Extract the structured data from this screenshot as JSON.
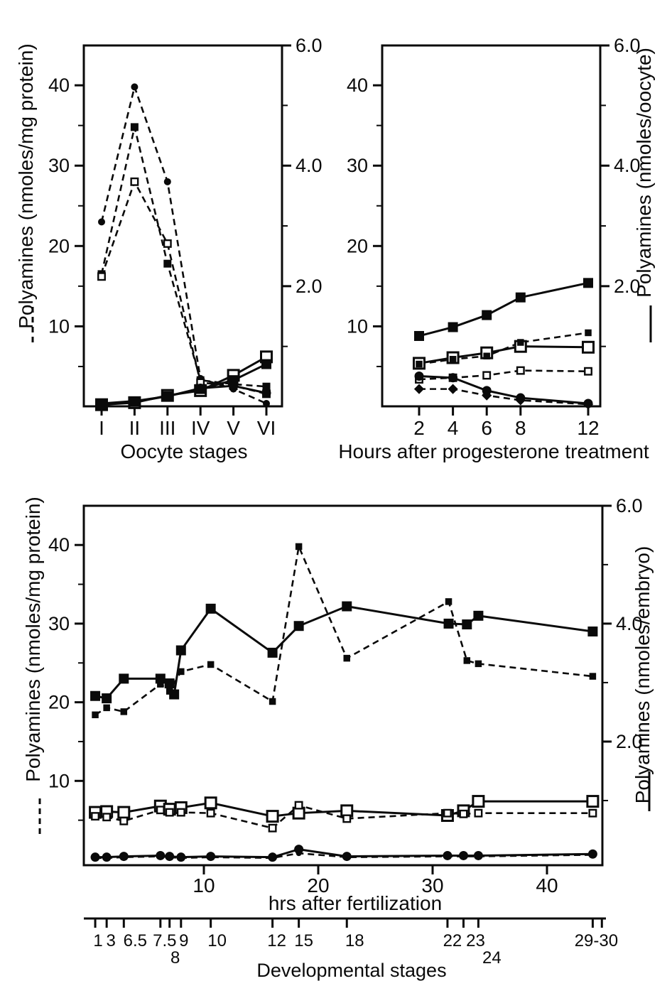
{
  "figure": {
    "background": "#ffffff",
    "ink": "#0a0a0a",
    "legend_note": {
      "dashed_line_reads": "left axis (nmoles/mg protein)",
      "solid_line_reads": "right axis (nmoles per oocyte/embryo)"
    }
  },
  "chart_data": [
    {
      "id": "oocyte-stages-panel",
      "type": "line",
      "x_axis": {
        "label": "Oocyte stages",
        "categories": [
          "I",
          "II",
          "III",
          "IV",
          "V",
          "VI"
        ]
      },
      "y_left": {
        "label": "Polyamines (nmoles/mg protein)",
        "line_style": "dashed",
        "range": [
          0,
          45
        ],
        "ticks": [
          10,
          20,
          30,
          40
        ],
        "minor_ticks": [
          5,
          15,
          25,
          35
        ]
      },
      "y_right": {
        "label": "",
        "line_style": "solid",
        "range": [
          0,
          6
        ],
        "ticks": [
          "2.0",
          "4.0",
          "6.0"
        ],
        "tick_values_left_units": [
          15,
          30,
          45
        ],
        "minor_tick_values_left_units": [
          7.5,
          22.5,
          37.5
        ]
      },
      "series": [
        {
          "name": "dashed-filled-circle",
          "marker": "circle-filled-medium",
          "line": "dashed",
          "axis": "left",
          "values": [
            23,
            39.8,
            28,
            3.5,
            2.2,
            0.4
          ]
        },
        {
          "name": "dashed-filled-square",
          "marker": "square-filled-medium",
          "line": "dashed",
          "axis": "left",
          "values": [
            16.5,
            34.8,
            17.8,
            3.3,
            2.8,
            2.5
          ]
        },
        {
          "name": "dashed-open-square",
          "marker": "square-open-small",
          "line": "dashed",
          "axis": "left",
          "values": [
            16.2,
            28,
            20.3,
            3.0,
            2.6,
            1.6
          ]
        },
        {
          "name": "solid-open-square",
          "marker": "square-open-large",
          "line": "solid",
          "axis": "right",
          "values": [
            0.25,
            0.5,
            1.4,
            2.0,
            3.9,
            6.2
          ]
        },
        {
          "name": "solid-filled-square",
          "marker": "square-filled-large",
          "line": "solid",
          "axis": "right",
          "values": [
            0.3,
            0.6,
            1.3,
            2.2,
            3.3,
            5.3
          ]
        },
        {
          "name": "solid-filled-circle",
          "marker": "circle-filled-large",
          "line": "solid",
          "axis": "right",
          "values": [
            0.4,
            0.7,
            1.3,
            2.3,
            2.6,
            1.7
          ]
        }
      ]
    },
    {
      "id": "progesterone-panel",
      "type": "line",
      "x_axis": {
        "label": "Hours after progesterone treatment",
        "values": [
          2,
          4,
          6,
          8,
          12
        ],
        "tick_labels": [
          "2",
          "4",
          "6",
          "8",
          "12"
        ]
      },
      "y_left": {
        "label": "",
        "line_style": "dashed",
        "range": [
          0,
          45
        ],
        "ticks": [
          10,
          20,
          30,
          40
        ],
        "minor_ticks": [
          5,
          15,
          25,
          35
        ]
      },
      "y_right": {
        "label": "Polyamines (nmoles/oocyte)",
        "line_style": "solid",
        "range": [
          0,
          6
        ],
        "ticks": [
          "2.0",
          "4.0",
          "6.0"
        ],
        "tick_values_left_units": [
          15,
          30,
          45
        ],
        "minor_tick_values_left_units": [
          7.5,
          22.5,
          37.5
        ]
      },
      "series": [
        {
          "name": "solid-filled-square",
          "marker": "square-filled-large",
          "line": "solid",
          "axis": "right",
          "values": [
            8.8,
            9.9,
            11.4,
            13.6,
            15.4
          ]
        },
        {
          "name": "solid-open-square",
          "marker": "square-open-large",
          "line": "solid",
          "axis": "right",
          "values": [
            5.4,
            6.1,
            6.7,
            7.5,
            7.4
          ]
        },
        {
          "name": "dashed-filled-square",
          "marker": "square-filled-small",
          "line": "dashed",
          "axis": "left",
          "values": [
            5.3,
            5.9,
            6.3,
            8.0,
            9.2
          ]
        },
        {
          "name": "dashed-open-square",
          "marker": "square-open-small",
          "line": "dashed",
          "axis": "left",
          "values": [
            3.4,
            3.6,
            3.9,
            4.5,
            4.4
          ]
        },
        {
          "name": "solid-filled-circle",
          "marker": "circle-filled-large",
          "line": "solid",
          "axis": "right",
          "values": [
            3.8,
            3.6,
            2.0,
            1.1,
            0.4
          ]
        },
        {
          "name": "dashed-filled-diamond",
          "marker": "diamond-filled-small",
          "line": "dashed",
          "axis": "left",
          "values": [
            2.2,
            2.2,
            1.4,
            0.8,
            0.3
          ]
        }
      ]
    },
    {
      "id": "fertilization-panel",
      "type": "line",
      "x_axis": {
        "label": "hrs after fertilization",
        "ticks": [
          10,
          20,
          30,
          40
        ],
        "tick_labels": [
          "10",
          "20",
          "30",
          "40"
        ],
        "range": [
          -0.7,
          45.8
        ]
      },
      "y_left": {
        "label": "Polyamines (nmoles/mg protein)",
        "line_style": "dashed",
        "range": [
          0,
          45
        ],
        "ticks": [
          10,
          20,
          30,
          40
        ],
        "minor_ticks": [
          5,
          15,
          25,
          35
        ]
      },
      "y_right": {
        "label": "Polyamines (nmoles/embryo)",
        "line_style": "solid",
        "range": [
          0,
          6
        ],
        "ticks": [
          "2.0",
          "4.0",
          "6.0"
        ],
        "tick_values_left_units": [
          15,
          30,
          45
        ],
        "minor_tick_values_left_units": [
          7.5,
          22.5,
          37.5
        ]
      },
      "stage_axis": {
        "label": "Developmental stages",
        "stages": [
          {
            "label": "1",
            "hr": 0.5,
            "row": 1
          },
          {
            "label": "3",
            "hr": 1.5,
            "row": 1
          },
          {
            "label": "6.5",
            "hr": 3,
            "row": 1
          },
          {
            "label": "7.5",
            "hr": 6.2,
            "row": 1
          },
          {
            "label": "8",
            "hr": 7,
            "row": 2
          },
          {
            "label": "9",
            "hr": 8,
            "row": 1
          },
          {
            "label": "10",
            "hr": 10.6,
            "row": 1
          },
          {
            "label": "12",
            "hr": 16,
            "row": 1
          },
          {
            "label": "15",
            "hr": 18.3,
            "row": 1
          },
          {
            "label": "18",
            "hr": 22.5,
            "row": 1
          },
          {
            "label": "22",
            "hr": 31.3,
            "row": 1
          },
          {
            "label": "23",
            "hr": 32.7,
            "row": 1
          },
          {
            "label": "24",
            "hr": 34,
            "row": 2
          },
          {
            "label": "29-30",
            "hr": 44,
            "row": 1
          }
        ],
        "extra_tick_hr": 44.8
      },
      "series": [
        {
          "name": "solid-filled-square",
          "marker": "square-filled-large",
          "line": "solid",
          "axis": "right",
          "points": [
            [
              0.5,
              20.8
            ],
            [
              1.5,
              20.5
            ],
            [
              3,
              23
            ],
            [
              6.2,
              23
            ],
            [
              7,
              22.4
            ],
            [
              7.4,
              21
            ],
            [
              8,
              26.6
            ],
            [
              10.6,
              31.9
            ],
            [
              16,
              26.3
            ],
            [
              18.3,
              29.7
            ],
            [
              22.5,
              32.2
            ],
            [
              31.4,
              30
            ],
            [
              33,
              29.9
            ],
            [
              34,
              31
            ],
            [
              44,
              29
            ]
          ]
        },
        {
          "name": "dashed-filled-square",
          "marker": "square-filled-small",
          "line": "dashed",
          "axis": "left",
          "points": [
            [
              0.5,
              18.4
            ],
            [
              1.5,
              19.3
            ],
            [
              3,
              18.8
            ],
            [
              6.2,
              22.3
            ],
            [
              7,
              21.4
            ],
            [
              8,
              23.9
            ],
            [
              10.6,
              24.8
            ],
            [
              16,
              20.1
            ],
            [
              18.3,
              39.8
            ],
            [
              22.5,
              25.6
            ],
            [
              31.4,
              32.8
            ],
            [
              33,
              25.3
            ],
            [
              34,
              24.9
            ],
            [
              44,
              23.3
            ]
          ]
        },
        {
          "name": "solid-open-square",
          "marker": "square-open-large",
          "line": "solid",
          "axis": "right",
          "points": [
            [
              0.5,
              6.0
            ],
            [
              1.5,
              6.1
            ],
            [
              3,
              6.0
            ],
            [
              6.2,
              6.8
            ],
            [
              7,
              6.4
            ],
            [
              8,
              6.6
            ],
            [
              10.6,
              7.2
            ],
            [
              16,
              5.5
            ],
            [
              18.3,
              5.9
            ],
            [
              22.5,
              6.2
            ],
            [
              31.3,
              5.6
            ],
            [
              32.7,
              6.2
            ],
            [
              34,
              7.4
            ],
            [
              44,
              7.4
            ]
          ]
        },
        {
          "name": "dashed-open-square",
          "marker": "square-open-small",
          "line": "dashed",
          "axis": "left",
          "points": [
            [
              0.5,
              5.5
            ],
            [
              1.5,
              5.4
            ],
            [
              3,
              4.9
            ],
            [
              6.2,
              6.3
            ],
            [
              7,
              6.0
            ],
            [
              8,
              6.0
            ],
            [
              10.6,
              5.9
            ],
            [
              16,
              4.0
            ],
            [
              18.3,
              6.9
            ],
            [
              22.5,
              5.2
            ],
            [
              31.3,
              5.9
            ],
            [
              32.7,
              5.8
            ],
            [
              34,
              5.9
            ],
            [
              44,
              5.9
            ]
          ]
        },
        {
          "name": "solid-filled-circle",
          "marker": "circle-filled-large",
          "line": "solid",
          "axis": "right",
          "points": [
            [
              0.5,
              0.3
            ],
            [
              1.5,
              0.3
            ],
            [
              3,
              0.4
            ],
            [
              6.2,
              0.5
            ],
            [
              7,
              0.4
            ],
            [
              8,
              0.3
            ],
            [
              10.6,
              0.4
            ],
            [
              16,
              0.3
            ],
            [
              18.3,
              1.3
            ],
            [
              22.5,
              0.4
            ],
            [
              31.3,
              0.5
            ],
            [
              32.7,
              0.5
            ],
            [
              34,
              0.5
            ],
            [
              44,
              0.7
            ]
          ]
        },
        {
          "name": "dashed-filled-circle",
          "marker": "circle-filled-small",
          "line": "dashed",
          "axis": "left",
          "points": [
            [
              0.5,
              0.2
            ],
            [
              1.5,
              0.2
            ],
            [
              3,
              0.3
            ],
            [
              6.2,
              0.4
            ],
            [
              7,
              0.3
            ],
            [
              8,
              0.2
            ],
            [
              10.6,
              0.3
            ],
            [
              16,
              0.2
            ],
            [
              18.3,
              0.8
            ],
            [
              22.5,
              0.3
            ],
            [
              31.3,
              0.4
            ],
            [
              32.7,
              0.4
            ],
            [
              34,
              0.4
            ],
            [
              44,
              0.6
            ]
          ]
        }
      ]
    }
  ]
}
